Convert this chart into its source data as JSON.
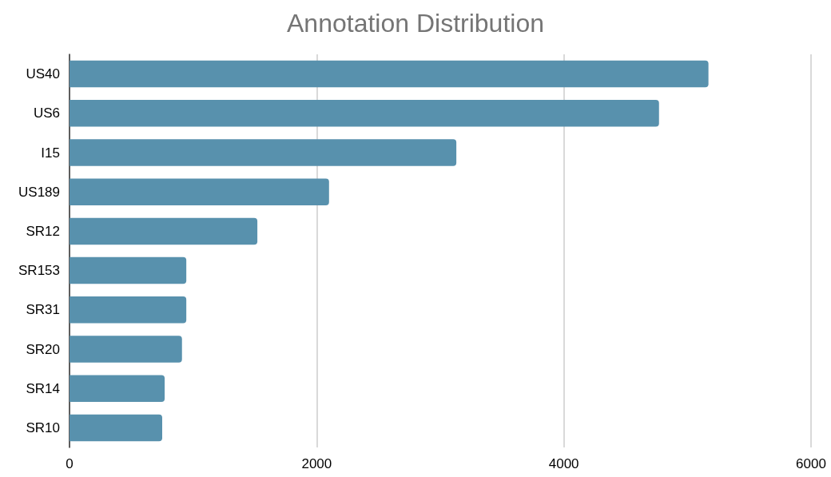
{
  "chart_data": {
    "type": "bar",
    "orientation": "horizontal",
    "title": "Annotation Distribution",
    "categories": [
      "US40",
      "US6",
      "I15",
      "US189",
      "SR12",
      "SR153",
      "SR31",
      "SR20",
      "SR14",
      "SR10"
    ],
    "values": [
      5170,
      4770,
      3130,
      2100,
      1520,
      945,
      945,
      910,
      770,
      750
    ],
    "color": "#5891ad",
    "xlim": [
      0,
      6000
    ],
    "xticks": [
      0,
      2000,
      4000,
      6000
    ],
    "grid": "x"
  }
}
